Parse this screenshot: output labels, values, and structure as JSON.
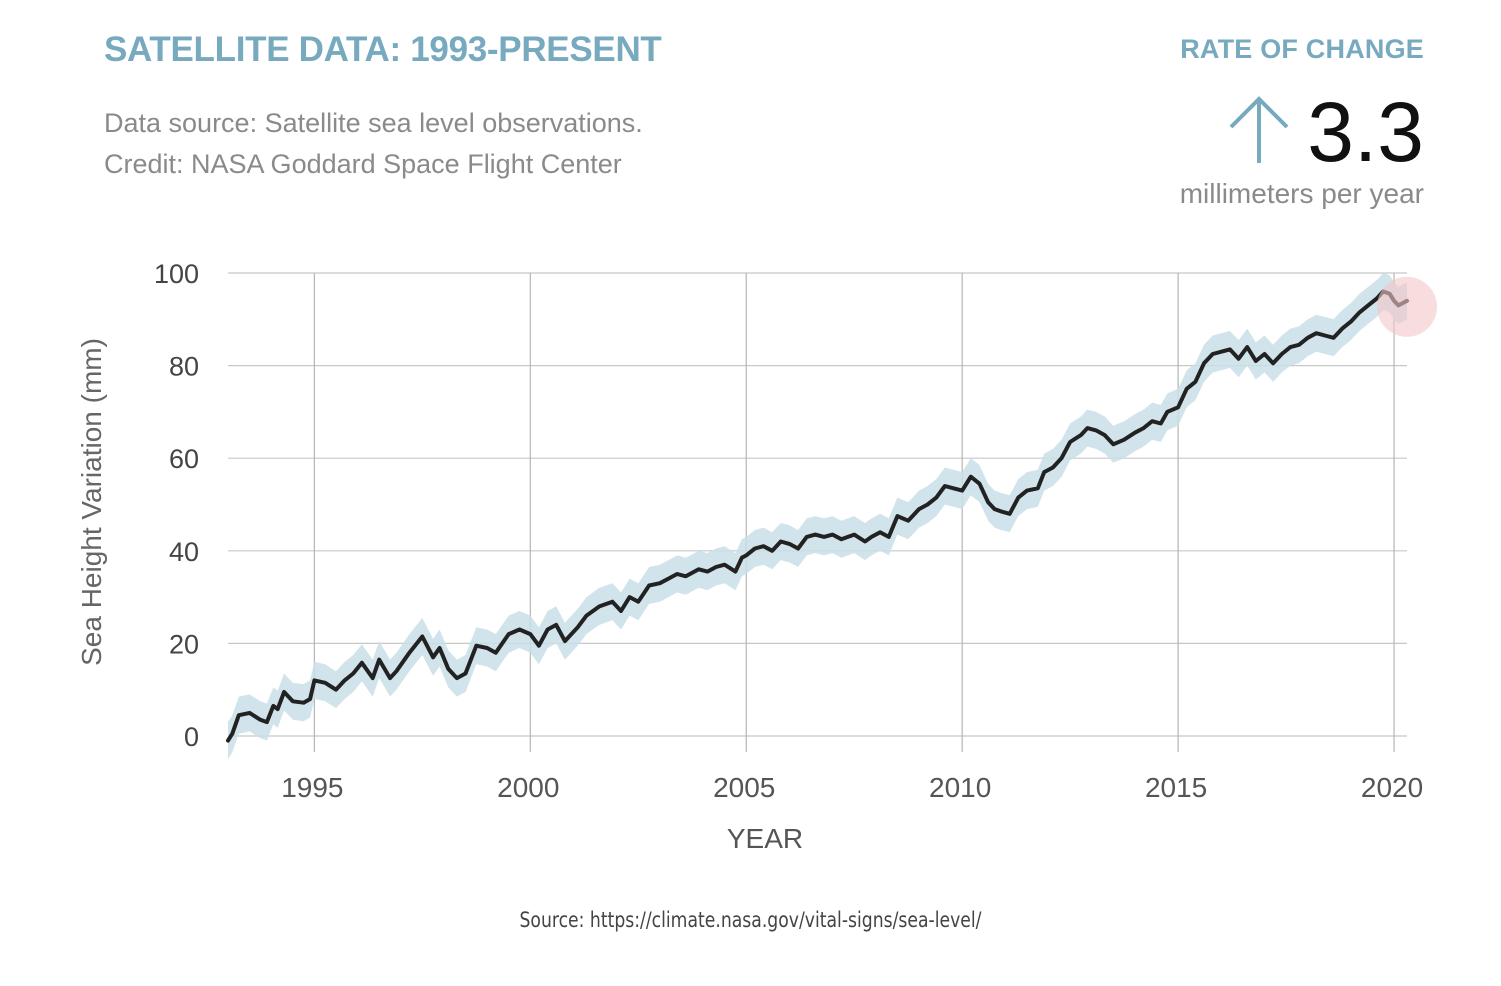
{
  "header": {
    "title": "SATELLITE DATA: 1993-PRESENT",
    "source_line": "Data source: Satellite sea level observations.",
    "credit_line": "Credit: NASA Goddard Space Flight Center"
  },
  "rate": {
    "label": "RATE OF CHANGE",
    "value": "3.3",
    "unit": "millimeters per year",
    "direction_icon": "up-arrow-icon"
  },
  "footer": {
    "source": "Source: https://climate.nasa.gov/vital-signs/sea-level/"
  },
  "colors": {
    "accent": "#77a9bf",
    "line": "#222222",
    "band": "#c9dfe8",
    "highlight": "#f3c6c8",
    "grid": "#c8c8c8"
  },
  "chart_data": {
    "type": "line",
    "title": "SATELLITE DATA: 1993-PRESENT",
    "xlabel": "YEAR",
    "ylabel": "Sea Height Variation (mm)",
    "xlim": [
      1993.0,
      2020.3
    ],
    "ylim": [
      0,
      100
    ],
    "x_ticks": [
      1995,
      2000,
      2005,
      2010,
      2015,
      2020
    ],
    "y_ticks": [
      0,
      20,
      40,
      60,
      80,
      100
    ],
    "grid": true,
    "uncertainty_band_mm": 4,
    "series": [
      {
        "x": [
          1993.0,
          1993.1,
          1993.25,
          1993.5,
          1993.75,
          1993.9,
          1994.05,
          1994.15,
          1994.3,
          1994.5,
          1994.75,
          1994.9,
          1995.0,
          1995.25,
          1995.5,
          1995.7,
          1995.9,
          1996.1,
          1996.35,
          1996.5,
          1996.75,
          1996.9,
          1997.2,
          1997.5,
          1997.75,
          1997.9,
          1998.1,
          1998.3,
          1998.5,
          1998.75,
          1999.0,
          1999.2,
          1999.5,
          1999.75,
          2000.0,
          2000.2,
          2000.4,
          2000.6,
          2000.8,
          2001.1,
          2001.3,
          2001.6,
          2001.9,
          2002.1,
          2002.3,
          2002.5,
          2002.75,
          2003.0,
          2003.2,
          2003.4,
          2003.6,
          2003.9,
          2004.1,
          2004.3,
          2004.5,
          2004.75,
          2004.9,
          2005.0,
          2005.2,
          2005.4,
          2005.6,
          2005.8,
          2006.0,
          2006.2,
          2006.4,
          2006.6,
          2006.8,
          2007.0,
          2007.2,
          2007.5,
          2007.75,
          2007.9,
          2008.1,
          2008.3,
          2008.5,
          2008.75,
          2009.0,
          2009.2,
          2009.4,
          2009.6,
          2009.8,
          2010.0,
          2010.2,
          2010.4,
          2010.6,
          2010.75,
          2010.9,
          2011.1,
          2011.3,
          2011.5,
          2011.75,
          2011.9,
          2012.1,
          2012.3,
          2012.5,
          2012.75,
          2012.9,
          2013.1,
          2013.3,
          2013.5,
          2013.75,
          2014.0,
          2014.2,
          2014.4,
          2014.6,
          2014.75,
          2015.0,
          2015.2,
          2015.4,
          2015.6,
          2015.8,
          2016.0,
          2016.2,
          2016.4,
          2016.6,
          2016.8,
          2017.0,
          2017.2,
          2017.4,
          2017.6,
          2017.8,
          2018.0,
          2018.2,
          2018.4,
          2018.6,
          2018.8,
          2019.0,
          2019.2,
          2019.4,
          2019.6,
          2019.75,
          2019.9,
          2020.0,
          2020.1,
          2020.2,
          2020.3
        ],
        "values": [
          -1.0,
          0.5,
          4.5,
          5.0,
          3.5,
          3.0,
          6.5,
          5.8,
          9.5,
          7.5,
          7.2,
          8.0,
          12.0,
          11.5,
          10.0,
          12.0,
          13.5,
          15.8,
          12.5,
          16.5,
          12.5,
          14.0,
          18.0,
          21.5,
          17.0,
          19.0,
          14.5,
          12.5,
          13.5,
          19.5,
          19.0,
          18.0,
          22.0,
          23.0,
          22.0,
          19.5,
          23.0,
          24.0,
          20.5,
          23.5,
          26.0,
          28.0,
          29.0,
          27.0,
          30.0,
          29.0,
          32.5,
          33.0,
          34.0,
          35.0,
          34.5,
          36.0,
          35.5,
          36.5,
          37.0,
          35.5,
          38.5,
          39.0,
          40.5,
          41.0,
          40.0,
          42.0,
          41.5,
          40.5,
          43.0,
          43.5,
          43.0,
          43.5,
          42.5,
          43.5,
          42.0,
          43.0,
          44.0,
          43.0,
          47.5,
          46.5,
          49.0,
          50.0,
          51.5,
          54.0,
          53.5,
          53.0,
          56.0,
          54.5,
          50.5,
          49.0,
          48.5,
          48.0,
          51.5,
          53.0,
          53.5,
          57.0,
          58.0,
          60.0,
          63.5,
          65.0,
          66.5,
          66.0,
          65.0,
          63.0,
          64.0,
          65.5,
          66.5,
          68.0,
          67.5,
          70.0,
          71.0,
          75.0,
          76.5,
          80.5,
          82.5,
          83.0,
          83.5,
          81.5,
          84.0,
          81.0,
          82.5,
          80.5,
          82.5,
          84.0,
          84.5,
          86.0,
          87.0,
          86.5,
          86.0,
          88.0,
          89.5,
          91.5,
          93.0,
          94.5,
          96.0,
          95.5,
          94.0,
          93.0,
          93.5,
          94.0
        ]
      }
    ]
  }
}
